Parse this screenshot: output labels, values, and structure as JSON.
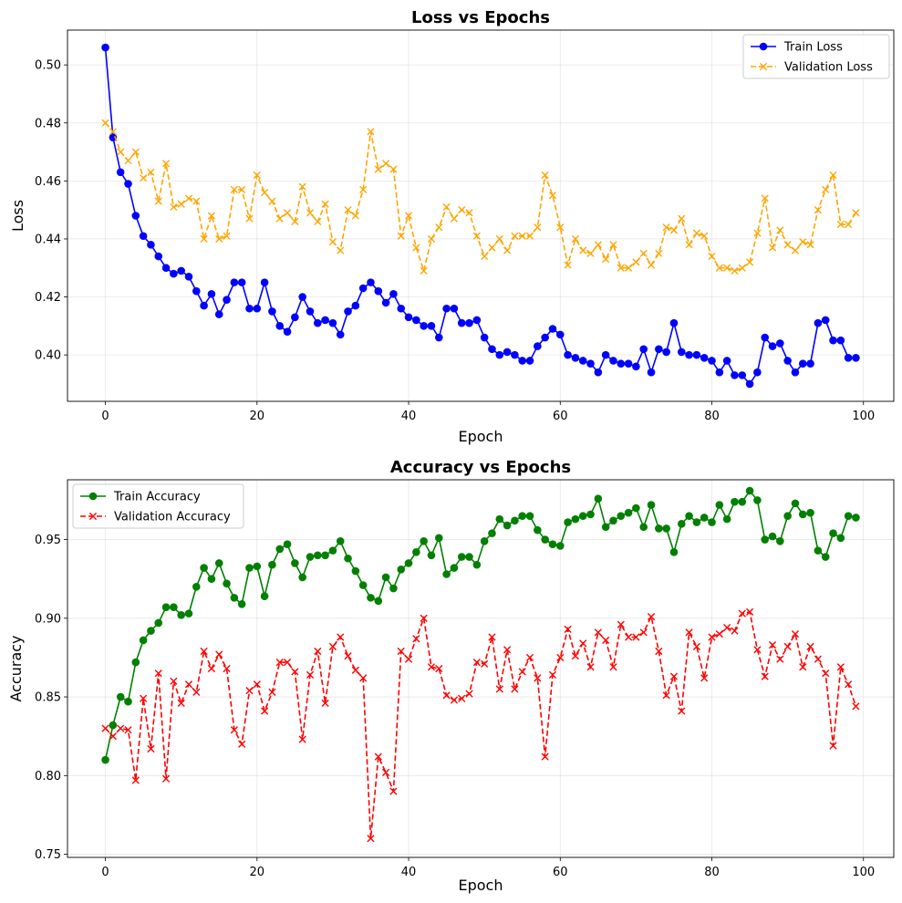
{
  "chart_data": [
    {
      "type": "line",
      "title": "Loss vs Epochs",
      "xlabel": "Epoch",
      "ylabel": "Loss",
      "xlim": [
        -5,
        104
      ],
      "ylim": [
        0.384,
        0.512
      ],
      "xticks": [
        0,
        20,
        40,
        60,
        80,
        100
      ],
      "yticks": [
        0.4,
        0.42,
        0.44,
        0.46,
        0.48,
        0.5
      ],
      "ytick_labels": [
        "0.40",
        "0.42",
        "0.44",
        "0.46",
        "0.48",
        "0.50"
      ],
      "grid": true,
      "legend_position": "top-right",
      "series": [
        {
          "name": "Train Loss",
          "color": "#0000ff",
          "marker": "circle",
          "line_style": "solid",
          "x": [
            0,
            1,
            2,
            3,
            4,
            5,
            6,
            7,
            8,
            9,
            10,
            11,
            12,
            13,
            14,
            15,
            16,
            17,
            18,
            19,
            20,
            21,
            22,
            23,
            24,
            25,
            26,
            27,
            28,
            29,
            30,
            31,
            32,
            33,
            34,
            35,
            36,
            37,
            38,
            39,
            40,
            41,
            42,
            43,
            44,
            45,
            46,
            47,
            48,
            49,
            50,
            51,
            52,
            53,
            54,
            55,
            56,
            57,
            58,
            59,
            60,
            61,
            62,
            63,
            64,
            65,
            66,
            67,
            68,
            69,
            70,
            71,
            72,
            73,
            74,
            75,
            76,
            77,
            78,
            79,
            80,
            81,
            82,
            83,
            84,
            85,
            86,
            87,
            88,
            89,
            90,
            91,
            92,
            93,
            94,
            95,
            96,
            97,
            98,
            99
          ],
          "values": [
            0.506,
            0.475,
            0.463,
            0.459,
            0.448,
            0.441,
            0.438,
            0.434,
            0.43,
            0.428,
            0.429,
            0.427,
            0.422,
            0.417,
            0.421,
            0.414,
            0.419,
            0.425,
            0.425,
            0.416,
            0.416,
            0.425,
            0.415,
            0.41,
            0.408,
            0.413,
            0.42,
            0.415,
            0.411,
            0.412,
            0.411,
            0.407,
            0.415,
            0.417,
            0.423,
            0.425,
            0.422,
            0.418,
            0.421,
            0.416,
            0.413,
            0.412,
            0.41,
            0.41,
            0.406,
            0.416,
            0.416,
            0.411,
            0.411,
            0.412,
            0.406,
            0.402,
            0.4,
            0.401,
            0.4,
            0.398,
            0.398,
            0.403,
            0.406,
            0.409,
            0.407,
            0.4,
            0.399,
            0.398,
            0.397,
            0.394,
            0.4,
            0.398,
            0.397,
            0.397,
            0.396,
            0.402,
            0.394,
            0.402,
            0.401,
            0.411,
            0.401,
            0.4,
            0.4,
            0.399,
            0.398,
            0.394,
            0.398,
            0.393,
            0.393,
            0.39,
            0.394,
            0.406,
            0.403,
            0.404,
            0.398,
            0.394,
            0.397,
            0.397,
            0.411,
            0.412,
            0.405,
            0.405,
            0.399,
            0.399
          ]
        },
        {
          "name": "Validation Loss",
          "color": "#ffa500",
          "marker": "x",
          "line_style": "dashed",
          "x": [
            0,
            1,
            2,
            3,
            4,
            5,
            6,
            7,
            8,
            9,
            10,
            11,
            12,
            13,
            14,
            15,
            16,
            17,
            18,
            19,
            20,
            21,
            22,
            23,
            24,
            25,
            26,
            27,
            28,
            29,
            30,
            31,
            32,
            33,
            34,
            35,
            36,
            37,
            38,
            39,
            40,
            41,
            42,
            43,
            44,
            45,
            46,
            47,
            48,
            49,
            50,
            51,
            52,
            53,
            54,
            55,
            56,
            57,
            58,
            59,
            60,
            61,
            62,
            63,
            64,
            65,
            66,
            67,
            68,
            69,
            70,
            71,
            72,
            73,
            74,
            75,
            76,
            77,
            78,
            79,
            80,
            81,
            82,
            83,
            84,
            85,
            86,
            87,
            88,
            89,
            90,
            91,
            92,
            93,
            94,
            95,
            96,
            97,
            98,
            99
          ],
          "values": [
            0.48,
            0.477,
            0.47,
            0.467,
            0.47,
            0.461,
            0.463,
            0.453,
            0.466,
            0.451,
            0.452,
            0.454,
            0.453,
            0.44,
            0.448,
            0.44,
            0.441,
            0.457,
            0.457,
            0.447,
            0.462,
            0.456,
            0.453,
            0.447,
            0.449,
            0.446,
            0.458,
            0.449,
            0.446,
            0.452,
            0.439,
            0.436,
            0.45,
            0.448,
            0.457,
            0.477,
            0.464,
            0.466,
            0.464,
            0.441,
            0.448,
            0.437,
            0.429,
            0.44,
            0.444,
            0.451,
            0.447,
            0.45,
            0.449,
            0.441,
            0.434,
            0.437,
            0.44,
            0.436,
            0.441,
            0.441,
            0.441,
            0.444,
            0.462,
            0.455,
            0.444,
            0.431,
            0.44,
            0.436,
            0.435,
            0.438,
            0.433,
            0.438,
            0.43,
            0.43,
            0.432,
            0.435,
            0.431,
            0.435,
            0.444,
            0.443,
            0.447,
            0.438,
            0.442,
            0.441,
            0.434,
            0.43,
            0.43,
            0.429,
            0.43,
            0.432,
            0.442,
            0.454,
            0.437,
            0.443,
            0.438,
            0.436,
            0.439,
            0.438,
            0.45,
            0.457,
            0.462,
            0.445,
            0.445,
            0.449
          ]
        }
      ]
    },
    {
      "type": "line",
      "title": "Accuracy vs Epochs",
      "xlabel": "Epoch",
      "ylabel": "Accuracy",
      "xlim": [
        -5,
        104
      ],
      "ylim": [
        0.748,
        0.988
      ],
      "xticks": [
        0,
        20,
        40,
        60,
        80,
        100
      ],
      "yticks": [
        0.75,
        0.8,
        0.85,
        0.9,
        0.95
      ],
      "ytick_labels": [
        "0.75",
        "0.80",
        "0.85",
        "0.90",
        "0.95"
      ],
      "grid": true,
      "legend_position": "top-left",
      "series": [
        {
          "name": "Train Accuracy",
          "color": "#008000",
          "marker": "circle",
          "line_style": "solid",
          "x": [
            0,
            1,
            2,
            3,
            4,
            5,
            6,
            7,
            8,
            9,
            10,
            11,
            12,
            13,
            14,
            15,
            16,
            17,
            18,
            19,
            20,
            21,
            22,
            23,
            24,
            25,
            26,
            27,
            28,
            29,
            30,
            31,
            32,
            33,
            34,
            35,
            36,
            37,
            38,
            39,
            40,
            41,
            42,
            43,
            44,
            45,
            46,
            47,
            48,
            49,
            50,
            51,
            52,
            53,
            54,
            55,
            56,
            57,
            58,
            59,
            60,
            61,
            62,
            63,
            64,
            65,
            66,
            67,
            68,
            69,
            70,
            71,
            72,
            73,
            74,
            75,
            76,
            77,
            78,
            79,
            80,
            81,
            82,
            83,
            84,
            85,
            86,
            87,
            88,
            89,
            90,
            91,
            92,
            93,
            94,
            95,
            96,
            97,
            98,
            99
          ],
          "values": [
            0.81,
            0.832,
            0.85,
            0.847,
            0.872,
            0.886,
            0.892,
            0.897,
            0.907,
            0.907,
            0.902,
            0.903,
            0.92,
            0.932,
            0.925,
            0.935,
            0.922,
            0.913,
            0.909,
            0.932,
            0.933,
            0.914,
            0.934,
            0.944,
            0.947,
            0.935,
            0.926,
            0.939,
            0.94,
            0.94,
            0.943,
            0.949,
            0.938,
            0.93,
            0.921,
            0.913,
            0.911,
            0.926,
            0.919,
            0.931,
            0.935,
            0.942,
            0.949,
            0.94,
            0.951,
            0.928,
            0.932,
            0.939,
            0.939,
            0.934,
            0.949,
            0.954,
            0.963,
            0.959,
            0.962,
            0.965,
            0.965,
            0.956,
            0.95,
            0.947,
            0.946,
            0.961,
            0.963,
            0.965,
            0.966,
            0.976,
            0.958,
            0.962,
            0.965,
            0.967,
            0.97,
            0.958,
            0.972,
            0.957,
            0.957,
            0.942,
            0.96,
            0.965,
            0.961,
            0.964,
            0.961,
            0.972,
            0.963,
            0.974,
            0.974,
            0.981,
            0.975,
            0.95,
            0.952,
            0.949,
            0.965,
            0.973,
            0.966,
            0.967,
            0.943,
            0.939,
            0.954,
            0.951,
            0.965,
            0.964
          ]
        },
        {
          "name": "Validation Accuracy",
          "color": "#ff0000",
          "marker": "x",
          "line_style": "dashed",
          "x": [
            0,
            1,
            2,
            3,
            4,
            5,
            6,
            7,
            8,
            9,
            10,
            11,
            12,
            13,
            14,
            15,
            16,
            17,
            18,
            19,
            20,
            21,
            22,
            23,
            24,
            25,
            26,
            27,
            28,
            29,
            30,
            31,
            32,
            33,
            34,
            35,
            36,
            37,
            38,
            39,
            40,
            41,
            42,
            43,
            44,
            45,
            46,
            47,
            48,
            49,
            50,
            51,
            52,
            53,
            54,
            55,
            56,
            57,
            58,
            59,
            60,
            61,
            62,
            63,
            64,
            65,
            66,
            67,
            68,
            69,
            70,
            71,
            72,
            73,
            74,
            75,
            76,
            77,
            78,
            79,
            80,
            81,
            82,
            83,
            84,
            85,
            86,
            87,
            88,
            89,
            90,
            91,
            92,
            93,
            94,
            95,
            96,
            97,
            98,
            99
          ],
          "values": [
            0.83,
            0.825,
            0.83,
            0.829,
            0.797,
            0.849,
            0.817,
            0.865,
            0.798,
            0.86,
            0.846,
            0.858,
            0.853,
            0.879,
            0.868,
            0.877,
            0.868,
            0.829,
            0.82,
            0.854,
            0.858,
            0.841,
            0.853,
            0.872,
            0.872,
            0.866,
            0.823,
            0.864,
            0.879,
            0.846,
            0.882,
            0.888,
            0.876,
            0.867,
            0.862,
            0.76,
            0.812,
            0.802,
            0.79,
            0.879,
            0.874,
            0.887,
            0.9,
            0.869,
            0.868,
            0.851,
            0.848,
            0.849,
            0.852,
            0.872,
            0.871,
            0.888,
            0.855,
            0.88,
            0.855,
            0.866,
            0.875,
            0.862,
            0.812,
            0.864,
            0.875,
            0.893,
            0.876,
            0.884,
            0.869,
            0.891,
            0.886,
            0.869,
            0.896,
            0.888,
            0.888,
            0.891,
            0.901,
            0.879,
            0.851,
            0.863,
            0.841,
            0.891,
            0.882,
            0.862,
            0.888,
            0.89,
            0.894,
            0.892,
            0.903,
            0.904,
            0.88,
            0.863,
            0.883,
            0.874,
            0.882,
            0.89,
            0.869,
            0.882,
            0.874,
            0.865,
            0.819,
            0.869,
            0.858,
            0.844
          ]
        }
      ]
    }
  ]
}
